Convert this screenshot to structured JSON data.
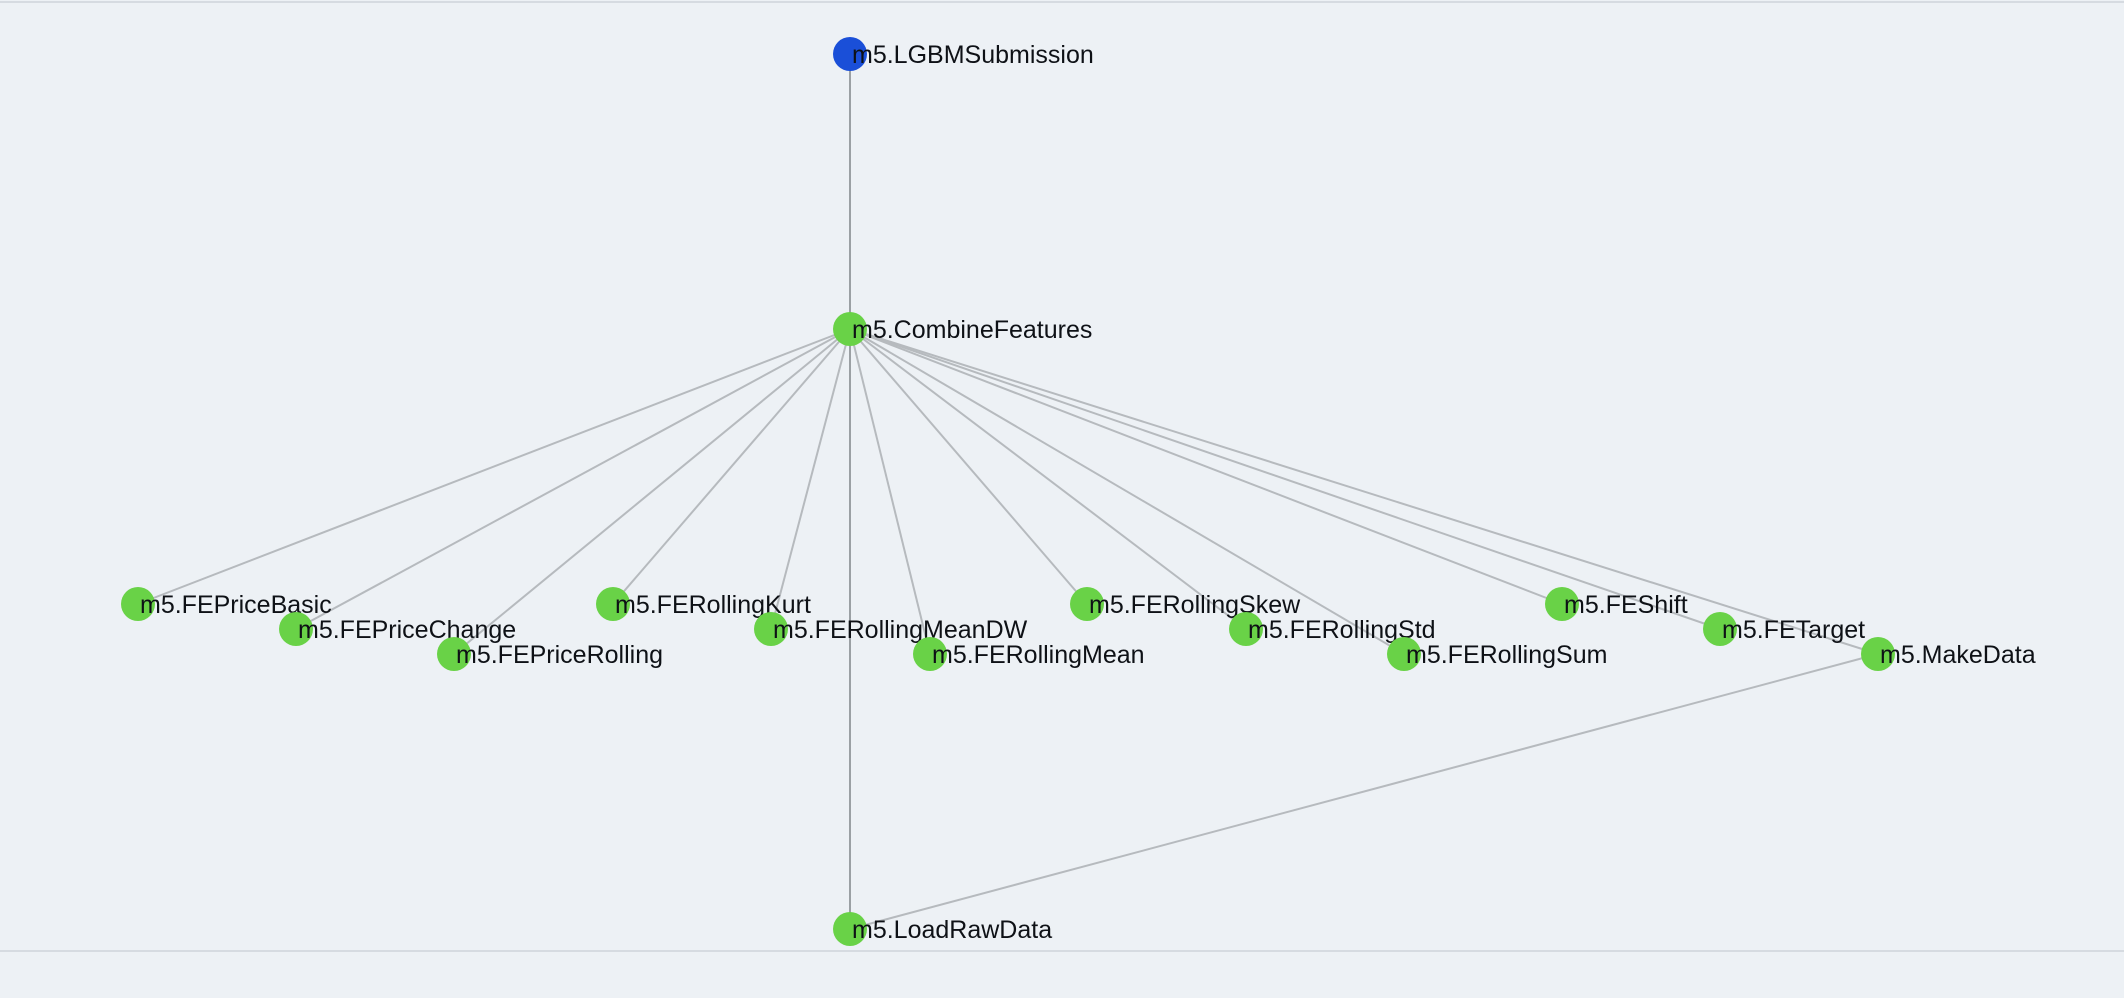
{
  "colors": {
    "background": "#edf1f5",
    "node_done": "#69d247",
    "node_root": "#1a4fd8",
    "edge": "#b6babe"
  },
  "graph": {
    "nodes": [
      {
        "id": "LGBMSubmission",
        "label": "m5.LGBMSubmission",
        "status": "root"
      },
      {
        "id": "CombineFeatures",
        "label": "m5.CombineFeatures",
        "status": "done"
      },
      {
        "id": "FEPriceBasic",
        "label": "m5.FEPriceBasic",
        "status": "done"
      },
      {
        "id": "FEPriceChange",
        "label": "m5.FEPriceChange",
        "status": "done"
      },
      {
        "id": "FEPriceRolling",
        "label": "m5.FEPriceRolling",
        "status": "done"
      },
      {
        "id": "FERollingKurt",
        "label": "m5.FERollingKurt",
        "status": "done"
      },
      {
        "id": "FERollingMeanDW",
        "label": "m5.FERollingMeanDW",
        "status": "done"
      },
      {
        "id": "FERollingMean",
        "label": "m5.FERollingMean",
        "status": "done"
      },
      {
        "id": "FERollingSkew",
        "label": "m5.FERollingSkew",
        "status": "done"
      },
      {
        "id": "FERollingStd",
        "label": "m5.FERollingStd",
        "status": "done"
      },
      {
        "id": "FERollingSum",
        "label": "m5.FERollingSum",
        "status": "done"
      },
      {
        "id": "FEShift",
        "label": "m5.FEShift",
        "status": "done"
      },
      {
        "id": "FETarget",
        "label": "m5.FETarget",
        "status": "done"
      },
      {
        "id": "MakeData",
        "label": "m5.MakeData",
        "status": "done"
      },
      {
        "id": "LoadRawData",
        "label": "m5.LoadRawData",
        "status": "done"
      }
    ],
    "edges": [
      [
        "LGBMSubmission",
        "CombineFeatures"
      ],
      [
        "CombineFeatures",
        "FEPriceBasic"
      ],
      [
        "CombineFeatures",
        "FEPriceChange"
      ],
      [
        "CombineFeatures",
        "FEPriceRolling"
      ],
      [
        "CombineFeatures",
        "FERollingKurt"
      ],
      [
        "CombineFeatures",
        "FERollingMeanDW"
      ],
      [
        "CombineFeatures",
        "FERollingMean"
      ],
      [
        "CombineFeatures",
        "FERollingSkew"
      ],
      [
        "CombineFeatures",
        "FERollingStd"
      ],
      [
        "CombineFeatures",
        "FERollingSum"
      ],
      [
        "CombineFeatures",
        "FEShift"
      ],
      [
        "CombineFeatures",
        "FETarget"
      ],
      [
        "CombineFeatures",
        "MakeData"
      ],
      [
        "CombineFeatures",
        "LoadRawData"
      ],
      [
        "MakeData",
        "LoadRawData"
      ]
    ]
  }
}
